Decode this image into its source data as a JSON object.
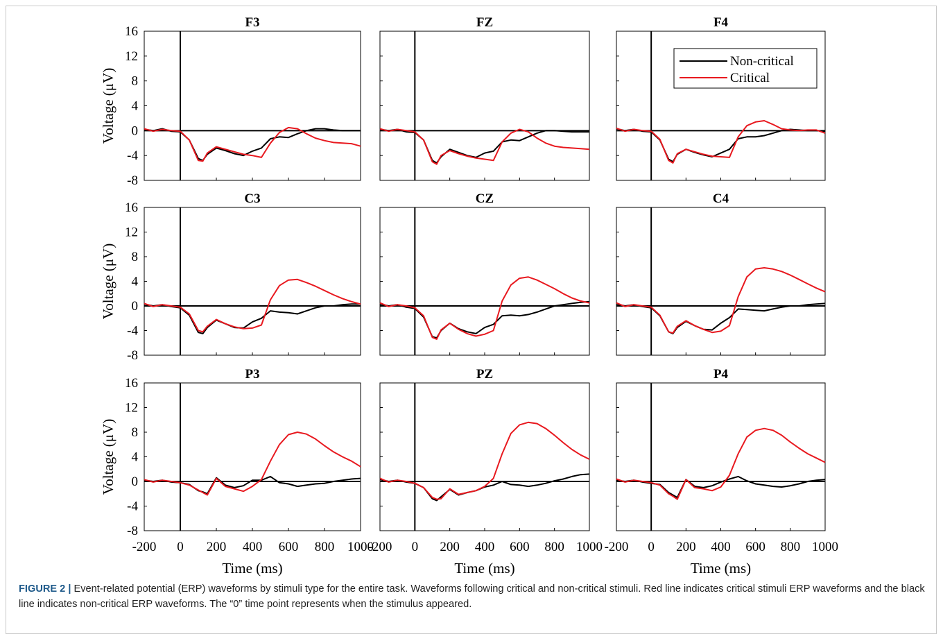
{
  "caption": {
    "label": "FIGURE 2 |",
    "text": "Event-related potential (ERP) waveforms by stimuli type for the entire task. Waveforms following critical and non-critical stimuli. Red line indicates critical stimuli ERP waveforms and the black line indicates non-critical ERP waveforms. The “0” time point represents when the stimulus appeared."
  },
  "colors": {
    "critical": "#e8191f",
    "non_critical": "#000000"
  },
  "chart_data": {
    "type": "line",
    "layout": "3x3 small multiples",
    "xlabel": "Time (ms)",
    "ylabel": "Voltage (μV)",
    "xlim": [
      -200,
      1000
    ],
    "ylim": [
      -8,
      16
    ],
    "xticks": [
      -200,
      0,
      200,
      400,
      600,
      800,
      1000
    ],
    "yticks": [
      -8,
      -4,
      0,
      4,
      8,
      12,
      16
    ],
    "stimulus_onset_ms": 0,
    "legend": {
      "location": "top-right",
      "panel": "F4",
      "entries": [
        "Non-critical",
        "Critical"
      ]
    },
    "x": [
      -200,
      -150,
      -100,
      -50,
      0,
      50,
      100,
      125,
      150,
      200,
      250,
      300,
      350,
      400,
      450,
      500,
      550,
      600,
      650,
      700,
      750,
      800,
      850,
      900,
      950,
      1000
    ],
    "panels": [
      {
        "title": "F3",
        "series": [
          {
            "name": "Non-critical",
            "values": [
              0.2,
              0.0,
              0.3,
              -0.1,
              -0.2,
              -1.5,
              -4.5,
              -4.8,
              -3.8,
              -2.8,
              -3.2,
              -3.7,
              -4.0,
              -3.3,
              -2.8,
              -1.3,
              -1.0,
              -1.1,
              -0.5,
              0.0,
              0.3,
              0.3,
              0.1,
              0.0,
              0.0,
              0.0
            ]
          },
          {
            "name": "Critical",
            "values": [
              0.3,
              -0.1,
              0.2,
              0.0,
              -0.1,
              -1.5,
              -4.8,
              -4.9,
              -3.6,
              -2.6,
              -3.0,
              -3.4,
              -3.8,
              -4.0,
              -4.3,
              -2.0,
              -0.3,
              0.5,
              0.3,
              -0.5,
              -1.2,
              -1.6,
              -1.9,
              -2.0,
              -2.1,
              -2.5
            ]
          }
        ]
      },
      {
        "title": "FZ",
        "series": [
          {
            "name": "Non-critical",
            "values": [
              0.2,
              0.0,
              0.2,
              -0.2,
              -0.3,
              -1.5,
              -4.8,
              -5.2,
              -4.2,
              -3.0,
              -3.5,
              -4.0,
              -4.3,
              -3.6,
              -3.3,
              -1.8,
              -1.5,
              -1.6,
              -1.0,
              -0.4,
              0.0,
              0.0,
              -0.1,
              -0.2,
              -0.2,
              -0.2
            ]
          },
          {
            "name": "Critical",
            "values": [
              0.3,
              -0.1,
              0.2,
              0.0,
              -0.2,
              -1.5,
              -5.0,
              -5.4,
              -4.0,
              -3.2,
              -3.7,
              -4.1,
              -4.4,
              -4.6,
              -4.8,
              -1.8,
              -0.4,
              0.2,
              -0.2,
              -1.2,
              -2.0,
              -2.5,
              -2.7,
              -2.8,
              -2.9,
              -3.0
            ]
          }
        ]
      },
      {
        "title": "F4",
        "series": [
          {
            "name": "Non-critical",
            "values": [
              0.3,
              0.0,
              0.2,
              -0.1,
              -0.2,
              -1.5,
              -4.6,
              -5.0,
              -3.8,
              -3.0,
              -3.5,
              -3.9,
              -4.2,
              -3.6,
              -3.0,
              -1.3,
              -1.0,
              -1.0,
              -0.8,
              -0.4,
              0.0,
              0.2,
              0.1,
              0.0,
              0.0,
              -0.1
            ]
          },
          {
            "name": "Critical",
            "values": [
              0.4,
              -0.1,
              0.2,
              0.0,
              -0.1,
              -1.4,
              -4.8,
              -5.2,
              -3.7,
              -3.0,
              -3.4,
              -3.8,
              -4.1,
              -4.2,
              -4.3,
              -1.0,
              0.8,
              1.4,
              1.6,
              1.0,
              0.3,
              0.1,
              0.0,
              0.1,
              0.1,
              -0.4
            ]
          }
        ]
      },
      {
        "title": "C3",
        "series": [
          {
            "name": "Non-critical",
            "values": [
              0.3,
              0.0,
              0.2,
              -0.1,
              -0.3,
              -1.5,
              -4.3,
              -4.5,
              -3.5,
              -2.3,
              -2.9,
              -3.5,
              -3.6,
              -2.6,
              -2.0,
              -0.8,
              -1.0,
              -1.1,
              -1.3,
              -0.8,
              -0.3,
              0.0,
              0.0,
              0.2,
              0.3,
              0.3
            ]
          },
          {
            "name": "Critical",
            "values": [
              0.4,
              -0.1,
              0.2,
              0.0,
              -0.2,
              -1.3,
              -4.0,
              -4.2,
              -3.3,
              -2.2,
              -2.9,
              -3.4,
              -3.7,
              -3.6,
              -3.1,
              1.0,
              3.3,
              4.2,
              4.3,
              3.8,
              3.2,
              2.5,
              1.8,
              1.2,
              0.7,
              0.3
            ]
          }
        ]
      },
      {
        "title": "CZ",
        "series": [
          {
            "name": "Non-critical",
            "values": [
              0.3,
              0.0,
              0.2,
              -0.2,
              -0.4,
              -1.8,
              -5.0,
              -5.2,
              -4.0,
              -2.8,
              -3.7,
              -4.2,
              -4.5,
              -3.5,
              -3.0,
              -1.6,
              -1.5,
              -1.6,
              -1.4,
              -1.0,
              -0.5,
              0.0,
              0.2,
              0.4,
              0.6,
              0.7
            ]
          },
          {
            "name": "Critical",
            "values": [
              0.5,
              -0.1,
              0.2,
              0.0,
              -0.3,
              -1.6,
              -5.1,
              -5.4,
              -3.9,
              -2.8,
              -3.8,
              -4.5,
              -4.9,
              -4.6,
              -4.0,
              0.8,
              3.4,
              4.5,
              4.7,
              4.2,
              3.5,
              2.8,
              2.0,
              1.3,
              0.8,
              0.5
            ]
          }
        ]
      },
      {
        "title": "C4",
        "series": [
          {
            "name": "Non-critical",
            "values": [
              0.3,
              0.0,
              0.2,
              -0.1,
              -0.3,
              -1.6,
              -4.2,
              -4.5,
              -3.5,
              -2.5,
              -3.2,
              -3.8,
              -3.9,
              -2.8,
              -1.9,
              -0.5,
              -0.6,
              -0.7,
              -0.8,
              -0.5,
              -0.2,
              0.0,
              0.0,
              0.2,
              0.3,
              0.4
            ]
          },
          {
            "name": "Critical",
            "values": [
              0.5,
              -0.1,
              0.2,
              0.0,
              -0.2,
              -1.5,
              -4.2,
              -4.4,
              -3.3,
              -2.4,
              -3.2,
              -3.8,
              -4.3,
              -4.1,
              -3.2,
              1.5,
              4.7,
              6.0,
              6.2,
              6.0,
              5.6,
              5.0,
              4.3,
              3.6,
              2.9,
              2.3
            ]
          }
        ]
      },
      {
        "title": "P3",
        "series": [
          {
            "name": "Non-critical",
            "values": [
              0.2,
              0.0,
              0.2,
              -0.1,
              -0.2,
              -0.5,
              -1.5,
              -1.7,
              -2.0,
              0.6,
              -0.6,
              -1.0,
              -0.7,
              0.2,
              0.2,
              0.8,
              -0.2,
              -0.4,
              -0.8,
              -0.6,
              -0.4,
              -0.3,
              0.0,
              0.2,
              0.4,
              0.5
            ]
          },
          {
            "name": "Critical",
            "values": [
              0.3,
              -0.1,
              0.2,
              0.0,
              -0.2,
              -0.6,
              -1.4,
              -1.8,
              -2.2,
              0.5,
              -0.8,
              -1.2,
              -1.6,
              -0.8,
              0.3,
              3.3,
              6.0,
              7.6,
              8.0,
              7.7,
              6.9,
              5.8,
              4.8,
              4.0,
              3.3,
              2.4
            ]
          }
        ]
      },
      {
        "title": "PZ",
        "series": [
          {
            "name": "Non-critical",
            "values": [
              0.3,
              0.0,
              0.2,
              -0.1,
              -0.3,
              -1.0,
              -2.8,
              -3.1,
              -2.5,
              -1.3,
              -2.2,
              -1.8,
              -1.5,
              -0.9,
              -0.6,
              0.0,
              -0.5,
              -0.6,
              -0.8,
              -0.6,
              -0.3,
              0.1,
              0.4,
              0.8,
              1.1,
              1.2
            ]
          },
          {
            "name": "Critical",
            "values": [
              0.5,
              -0.1,
              0.2,
              0.0,
              -0.3,
              -1.0,
              -2.6,
              -2.9,
              -2.8,
              -1.2,
              -2.1,
              -1.8,
              -1.5,
              -0.8,
              0.5,
              4.5,
              7.8,
              9.2,
              9.6,
              9.4,
              8.6,
              7.5,
              6.3,
              5.2,
              4.3,
              3.6
            ]
          }
        ]
      },
      {
        "title": "P4",
        "series": [
          {
            "name": "Non-critical",
            "values": [
              0.2,
              0.0,
              0.2,
              -0.1,
              -0.3,
              -0.5,
              -1.8,
              -2.2,
              -2.6,
              0.3,
              -0.8,
              -1.0,
              -0.7,
              -0.1,
              0.4,
              0.8,
              0.1,
              -0.4,
              -0.6,
              -0.8,
              -0.9,
              -0.7,
              -0.4,
              0.0,
              0.2,
              0.3
            ]
          },
          {
            "name": "Critical",
            "values": [
              0.4,
              -0.1,
              0.2,
              0.0,
              -0.2,
              -0.6,
              -2.0,
              -2.4,
              -2.9,
              0.3,
              -1.0,
              -1.2,
              -1.5,
              -0.9,
              1.0,
              4.5,
              7.2,
              8.3,
              8.6,
              8.3,
              7.5,
              6.4,
              5.4,
              4.5,
              3.8,
              3.1
            ]
          }
        ]
      }
    ]
  }
}
